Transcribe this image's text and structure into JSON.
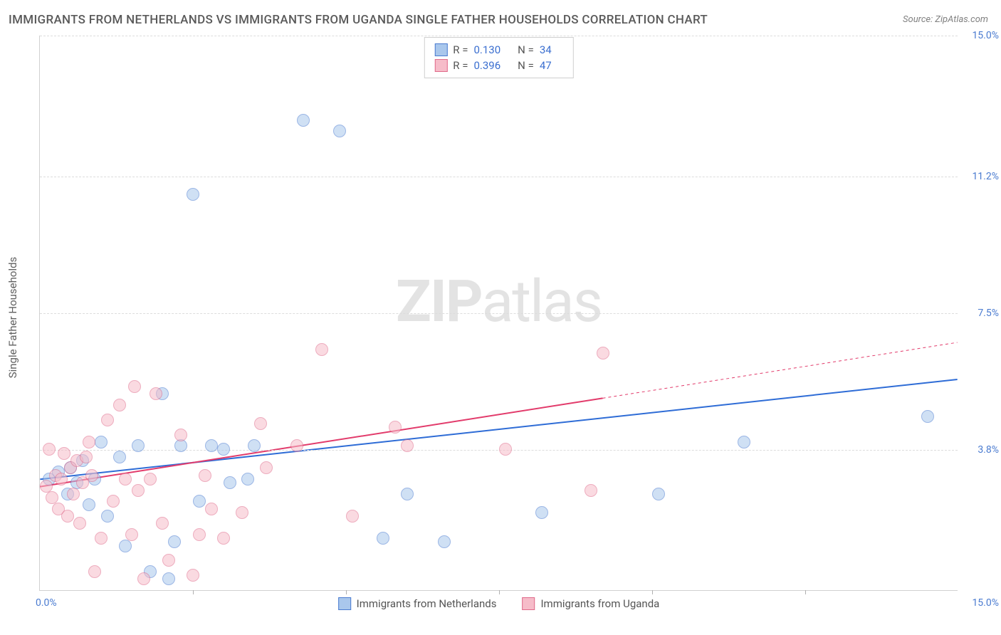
{
  "title": "IMMIGRANTS FROM NETHERLANDS VS IMMIGRANTS FROM UGANDA SINGLE FATHER HOUSEHOLDS CORRELATION CHART",
  "source": "Source: ZipAtlas.com",
  "y_axis_label": "Single Father Households",
  "watermark_bold": "ZIP",
  "watermark_rest": "atlas",
  "chart": {
    "type": "scatter",
    "background_color": "#ffffff",
    "grid_color": "#dcdcdc",
    "text_color": "#5a5a5a",
    "axis_label_color": "#4a7bd0",
    "xlim": [
      0,
      15
    ],
    "ylim": [
      0,
      15
    ],
    "y_ticks": [
      3.8,
      7.5,
      11.2,
      15.0
    ],
    "y_tick_labels": [
      "3.8%",
      "7.5%",
      "11.2%",
      "15.0%"
    ],
    "x_ticks": [
      0,
      2.5,
      5,
      7.5,
      10,
      12.5,
      15
    ],
    "x_start_label": "0.0%",
    "x_end_label": "15.0%",
    "marker_radius": 9,
    "marker_opacity": 0.55,
    "marker_stroke_width": 1.2
  },
  "series": [
    {
      "name": "Immigrants from Netherlands",
      "color_fill": "#a9c7ec",
      "color_stroke": "#4a7bd0",
      "trend_color": "#2e6cd6",
      "trend_width": 2,
      "trend": {
        "x1": 0,
        "y1": 3.0,
        "x2": 15,
        "y2": 5.7
      },
      "trend_dash_from_x": null,
      "r": "0.130",
      "n": "34",
      "points": [
        [
          0.15,
          3.0
        ],
        [
          0.3,
          3.2
        ],
        [
          0.45,
          2.6
        ],
        [
          0.5,
          3.3
        ],
        [
          0.6,
          2.9
        ],
        [
          0.7,
          3.5
        ],
        [
          0.8,
          2.3
        ],
        [
          0.9,
          3.0
        ],
        [
          1.0,
          4.0
        ],
        [
          1.1,
          2.0
        ],
        [
          1.3,
          3.6
        ],
        [
          1.4,
          1.2
        ],
        [
          1.6,
          3.9
        ],
        [
          1.8,
          0.5
        ],
        [
          2.0,
          5.3
        ],
        [
          2.1,
          0.3
        ],
        [
          2.2,
          1.3
        ],
        [
          2.3,
          3.9
        ],
        [
          2.5,
          10.7
        ],
        [
          2.6,
          2.4
        ],
        [
          2.8,
          3.9
        ],
        [
          3.0,
          3.8
        ],
        [
          3.1,
          2.9
        ],
        [
          3.4,
          3.0
        ],
        [
          3.5,
          3.9
        ],
        [
          4.3,
          12.7
        ],
        [
          4.9,
          12.4
        ],
        [
          5.6,
          1.4
        ],
        [
          6.0,
          2.6
        ],
        [
          6.6,
          1.3
        ],
        [
          8.2,
          2.1
        ],
        [
          10.1,
          2.6
        ],
        [
          11.5,
          4.0
        ],
        [
          14.5,
          4.7
        ]
      ]
    },
    {
      "name": "Immigrants from Uganda",
      "color_fill": "#f6bcc9",
      "color_stroke": "#e06a8a",
      "trend_color": "#e23b6b",
      "trend_width": 2,
      "trend": {
        "x1": 0,
        "y1": 2.8,
        "x2": 15,
        "y2": 6.7
      },
      "trend_dash_from_x": 9.2,
      "r": "0.396",
      "n": "47",
      "points": [
        [
          0.1,
          2.8
        ],
        [
          0.15,
          3.8
        ],
        [
          0.2,
          2.5
        ],
        [
          0.25,
          3.1
        ],
        [
          0.3,
          2.2
        ],
        [
          0.35,
          3.0
        ],
        [
          0.4,
          3.7
        ],
        [
          0.45,
          2.0
        ],
        [
          0.5,
          3.3
        ],
        [
          0.55,
          2.6
        ],
        [
          0.6,
          3.5
        ],
        [
          0.65,
          1.8
        ],
        [
          0.7,
          2.9
        ],
        [
          0.75,
          3.6
        ],
        [
          0.8,
          4.0
        ],
        [
          0.85,
          3.1
        ],
        [
          0.9,
          0.5
        ],
        [
          1.0,
          1.4
        ],
        [
          1.1,
          4.6
        ],
        [
          1.2,
          2.4
        ],
        [
          1.3,
          5.0
        ],
        [
          1.4,
          3.0
        ],
        [
          1.5,
          1.5
        ],
        [
          1.55,
          5.5
        ],
        [
          1.6,
          2.7
        ],
        [
          1.7,
          0.3
        ],
        [
          1.8,
          3.0
        ],
        [
          1.9,
          5.3
        ],
        [
          2.0,
          1.8
        ],
        [
          2.1,
          0.8
        ],
        [
          2.3,
          4.2
        ],
        [
          2.5,
          0.4
        ],
        [
          2.6,
          1.5
        ],
        [
          2.7,
          3.1
        ],
        [
          2.8,
          2.2
        ],
        [
          3.0,
          1.4
        ],
        [
          3.3,
          2.1
        ],
        [
          3.6,
          4.5
        ],
        [
          3.7,
          3.3
        ],
        [
          4.2,
          3.9
        ],
        [
          4.6,
          6.5
        ],
        [
          5.1,
          2.0
        ],
        [
          5.8,
          4.4
        ],
        [
          6.0,
          3.9
        ],
        [
          7.6,
          3.8
        ],
        [
          9.2,
          6.4
        ],
        [
          9.0,
          2.7
        ]
      ]
    }
  ],
  "stats_box": {
    "rows": [
      {
        "swatch_fill": "#a9c7ec",
        "swatch_stroke": "#4a7bd0",
        "r_label": "R =",
        "r_val": "0.130",
        "n_label": "N =",
        "n_val": "34"
      },
      {
        "swatch_fill": "#f6bcc9",
        "swatch_stroke": "#e06a8a",
        "r_label": "R =",
        "r_val": "0.396",
        "n_label": "N =",
        "n_val": "47"
      }
    ]
  },
  "bottom_legend": [
    {
      "swatch_fill": "#a9c7ec",
      "swatch_stroke": "#4a7bd0",
      "label": "Immigrants from Netherlands"
    },
    {
      "swatch_fill": "#f6bcc9",
      "swatch_stroke": "#e06a8a",
      "label": "Immigrants from Uganda"
    }
  ]
}
